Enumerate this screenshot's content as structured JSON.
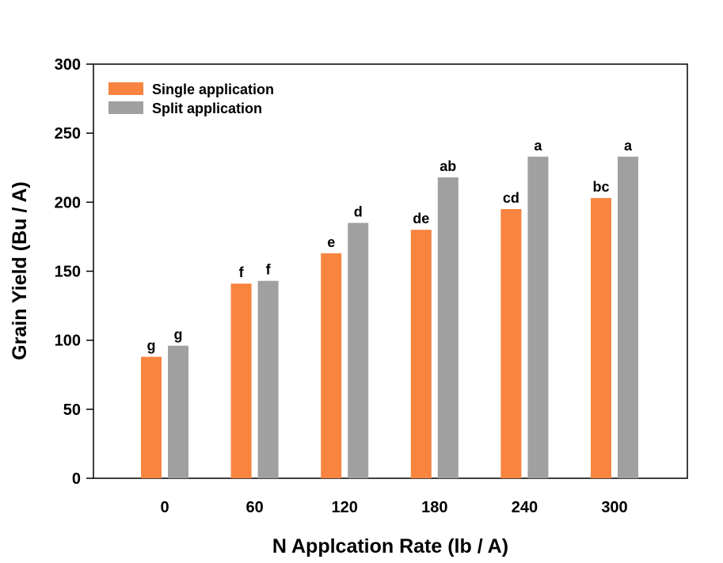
{
  "chart_data": {
    "type": "bar",
    "categories": [
      "0",
      "60",
      "120",
      "180",
      "240",
      "300"
    ],
    "series": [
      {
        "name": "Single application",
        "color": "#f88440",
        "values": [
          88,
          141,
          163,
          180,
          195,
          203
        ],
        "labels": [
          "g",
          "f",
          "e",
          "de",
          "cd",
          "bc"
        ]
      },
      {
        "name": "Split application",
        "color": "#a0a0a0",
        "values": [
          96,
          143,
          185,
          218,
          233,
          233
        ],
        "labels": [
          "g",
          "f",
          "d",
          "ab",
          "a",
          "a"
        ]
      }
    ],
    "xlabel": "N Applcation Rate (lb / A)",
    "ylabel": "Grain Yield (Bu / A)",
    "ylim": [
      0,
      300
    ],
    "yticks": [
      "0",
      "50",
      "100",
      "150",
      "200",
      "250",
      "300"
    ],
    "grid": false,
    "legend": "top-left"
  }
}
